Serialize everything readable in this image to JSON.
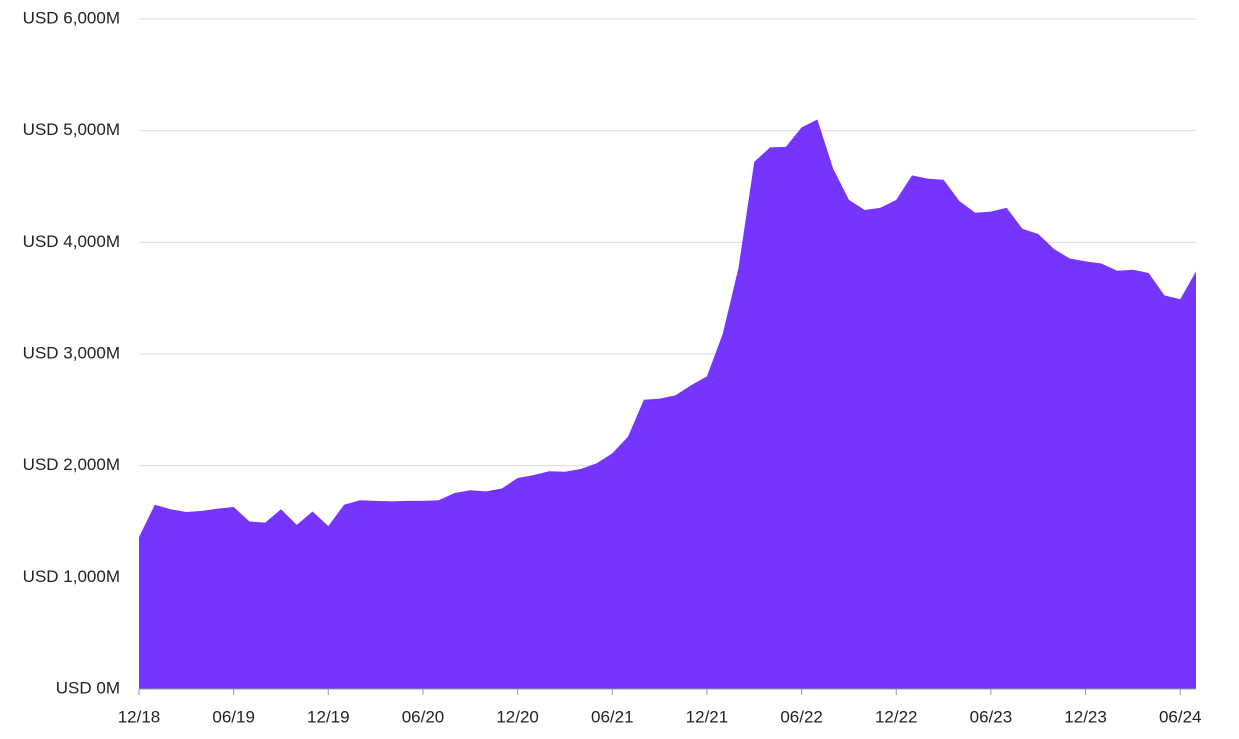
{
  "chart_data": {
    "type": "area",
    "color": "#7535ff",
    "grid": true,
    "categories": [
      "12/18",
      null,
      null,
      null,
      null,
      null,
      "06/19",
      null,
      null,
      null,
      null,
      null,
      "12/19",
      null,
      null,
      null,
      null,
      null,
      "06/20",
      null,
      null,
      null,
      null,
      null,
      "12/20",
      null,
      null,
      null,
      null,
      null,
      "06/21",
      null,
      null,
      null,
      null,
      null,
      "12/21",
      null,
      null,
      null,
      null,
      null,
      "06/22",
      null,
      null,
      null,
      null,
      null,
      "12/22",
      null,
      null,
      null,
      null,
      null,
      "06/23",
      null,
      null,
      null,
      null,
      null,
      "12/23",
      null,
      null,
      null,
      null,
      null,
      "06/24",
      null
    ],
    "values": [
      1360,
      1650,
      1610,
      1585,
      1595,
      1615,
      1630,
      1500,
      1490,
      1610,
      1470,
      1590,
      1460,
      1650,
      1690,
      1685,
      1680,
      1685,
      1685,
      1690,
      1755,
      1780,
      1770,
      1795,
      1890,
      1915,
      1950,
      1945,
      1970,
      2020,
      2110,
      2260,
      2590,
      2600,
      2630,
      2720,
      2800,
      3180,
      3770,
      4720,
      4850,
      4855,
      5030,
      5100,
      4660,
      4380,
      4290,
      4310,
      4380,
      4600,
      4570,
      4560,
      4370,
      4265,
      4275,
      4310,
      4120,
      4075,
      3940,
      3855,
      3830,
      3810,
      3745,
      3755,
      3725,
      3525,
      3490,
      3740
    ],
    "ylim": [
      0,
      6000
    ],
    "yticks": [
      {
        "value": 0,
        "label": "USD 0M"
      },
      {
        "value": 1000,
        "label": "USD 1,000M"
      },
      {
        "value": 2000,
        "label": "USD 2,000M"
      },
      {
        "value": 3000,
        "label": "USD 3,000M"
      },
      {
        "value": 4000,
        "label": "USD 4,000M"
      },
      {
        "value": 5000,
        "label": "USD 5,000M"
      },
      {
        "value": 6000,
        "label": "USD 6,000M"
      }
    ]
  }
}
